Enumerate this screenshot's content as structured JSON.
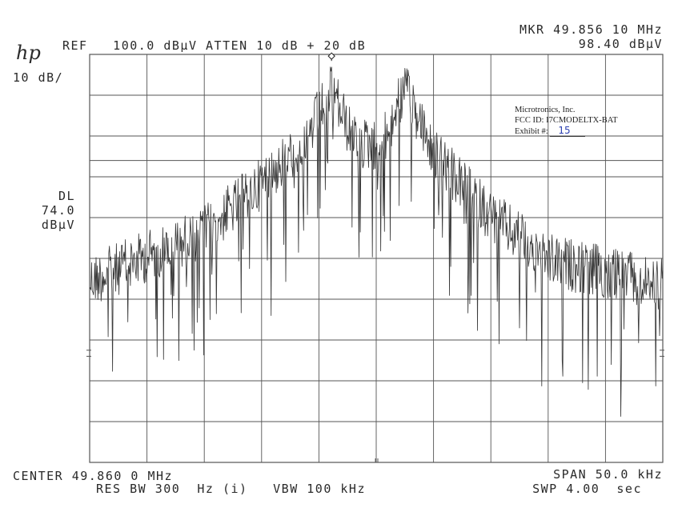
{
  "header": {
    "logo": "hp",
    "ref": "REF   100.0 dBµV ATTEN 10 dB + 20 dB",
    "mkr_line": "MKR 49.856 10 MHz",
    "mkr_value": "98.40 dBµV",
    "scale": "10 dB/"
  },
  "display_line": {
    "label": "DL",
    "value": "74.0",
    "unit": "dBµV"
  },
  "footer": {
    "center": "CENTER 49.860 0 MHz",
    "res_bw": "RES BW 300  Hz (i)   VBW 100 kHz",
    "span": "SPAN 50.0 kHz",
    "swp": "SWP 4.00  sec"
  },
  "exhibit": {
    "company": "Microtronics, Inc.",
    "fcc_id": "FCC ID:  I7CMODELTX-BAT",
    "exhibit_label": "Exhibit #:",
    "exhibit_number": "15"
  },
  "colors": {
    "trace": "#3a3a3a",
    "grid": "#555555",
    "ink": "#2b3fb0"
  },
  "chart_data": {
    "type": "line",
    "title": "",
    "xlabel": "",
    "ylabel": "",
    "center_mhz": 49.86,
    "span_khz": 50.0,
    "xlim_mhz": [
      49.835,
      49.885
    ],
    "ref_level_dbuv": 100.0,
    "scale_db_per_div": 10,
    "ylim_dbuv": [
      0,
      100
    ],
    "display_line_dbuv": 74.0,
    "marker": {
      "freq_mhz": 49.8561,
      "level_dbuv": 98.4
    },
    "grid": true,
    "series": [
      {
        "envelope_freq_mhz": [
          49.835,
          49.84,
          49.845,
          49.85,
          49.854,
          49.8561,
          49.858,
          49.8605,
          49.8625,
          49.865,
          49.87,
          49.875,
          49.88,
          49.885
        ],
        "envelope_level_dbuv": [
          51,
          57,
          63,
          75,
          86,
          98.4,
          85,
          84,
          98,
          82,
          67,
          56,
          53,
          50
        ]
      }
    ]
  }
}
